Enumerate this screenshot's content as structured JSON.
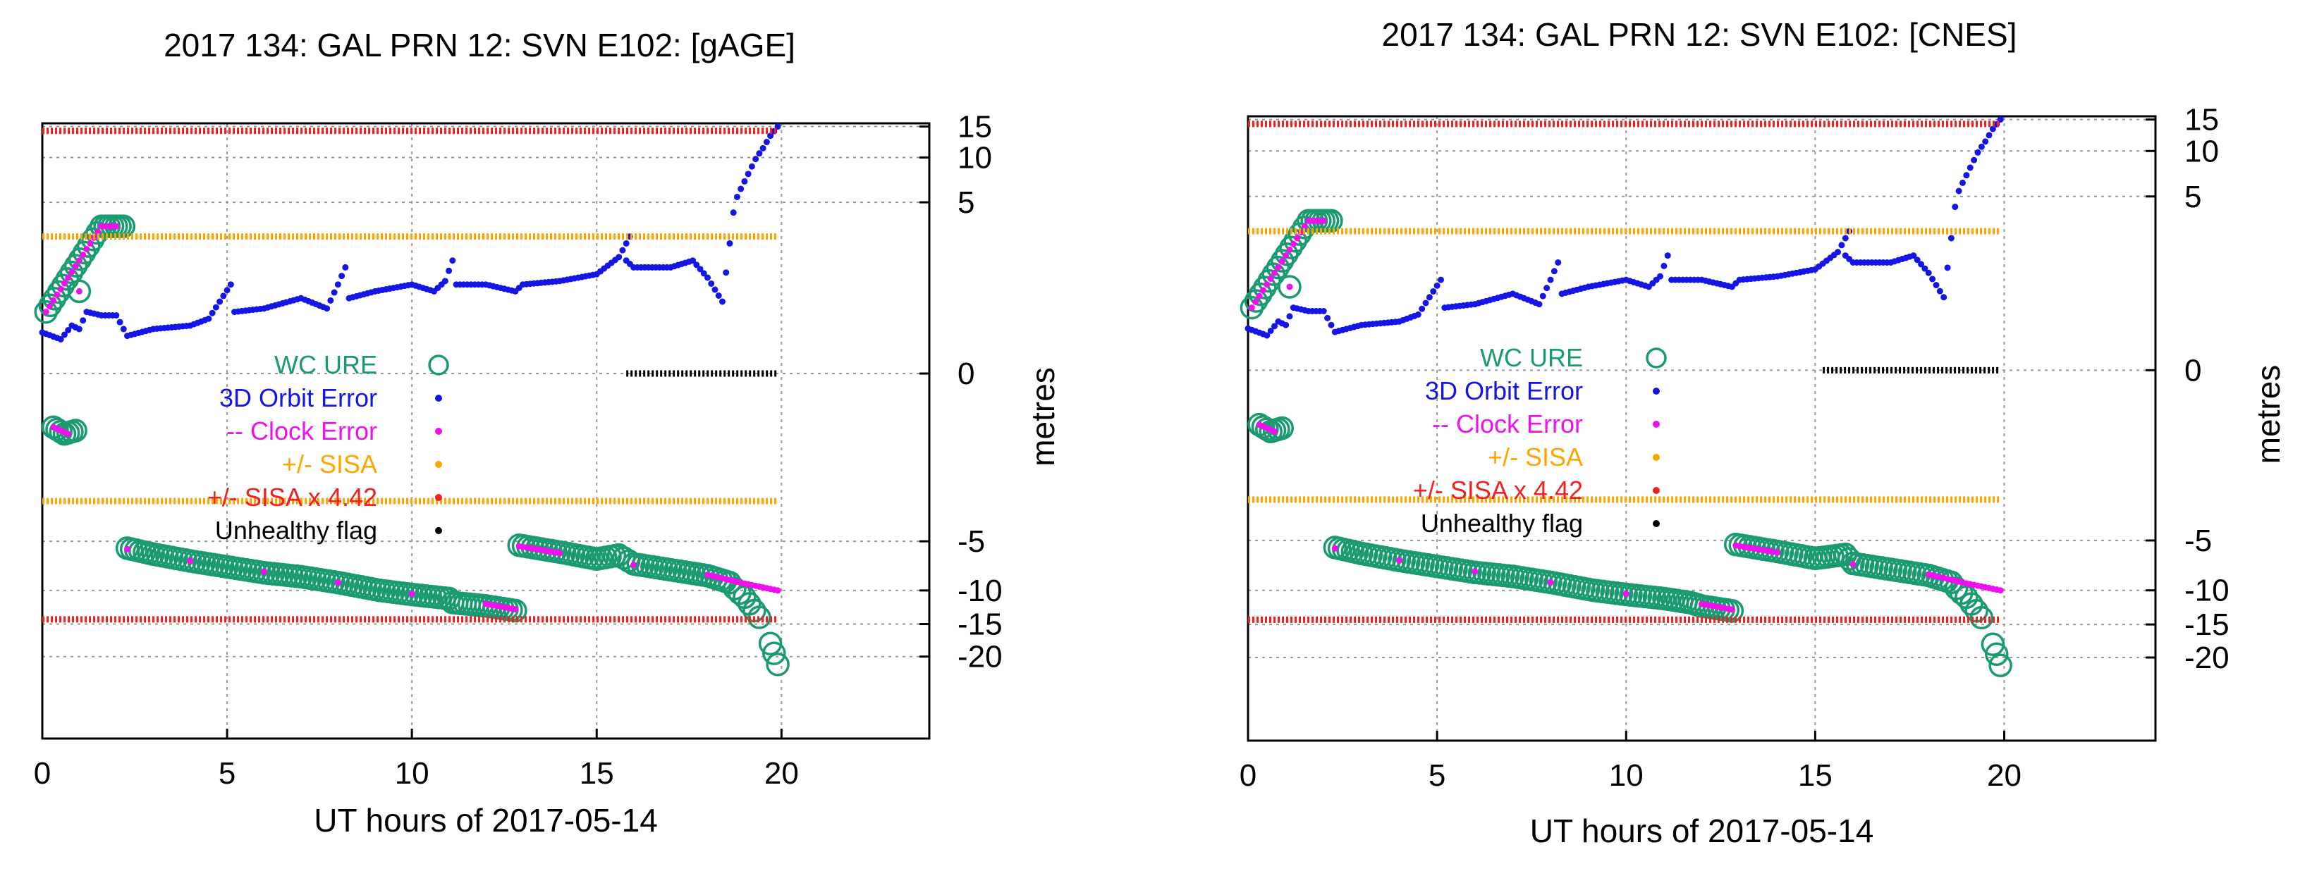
{
  "colors": {
    "wc_ure": "#1a9a70",
    "orbit": "#1515e6",
    "clock": "#ee11ee",
    "sisa": "#ffa500",
    "sisa442": "#ee2222",
    "unhealthy": "#000000"
  },
  "chart_data": [
    {
      "type": "scatter",
      "title": "2017 134: GAL PRN 12: SVN E102: [gAGE]",
      "xlabel": "UT hours of 2017-05-14",
      "ylabel": "metres",
      "xlim": [
        0,
        24
      ],
      "ylim": [
        -23,
        16
      ],
      "y_scale": "custom-compressed (linear ±5 m, compressed beyond)",
      "xticks": [
        "0",
        "5",
        "10",
        "15",
        "20"
      ],
      "yticks": [
        "15",
        "10",
        "5",
        "0",
        "-5",
        "-10",
        "-15",
        "-20"
      ],
      "grid": true,
      "legend_position": "middle-left",
      "series": [
        {
          "name": "WC URE",
          "marker": "open-circle",
          "points": [
            [
              0.1,
              1.8
            ],
            [
              1.6,
              4.3
            ],
            [
              1.8,
              4.3
            ],
            [
              2.0,
              4.3
            ],
            [
              2.2,
              4.3
            ],
            [
              1.0,
              2.4
            ],
            [
              0.3,
              -1.6
            ],
            [
              0.6,
              -1.8
            ],
            [
              0.9,
              -1.7
            ],
            [
              2.3,
              -5.7
            ],
            [
              3,
              -6.3
            ],
            [
              4,
              -7
            ],
            [
              5,
              -7.6
            ],
            [
              6,
              -8.2
            ],
            [
              7,
              -8.6
            ],
            [
              8,
              -9.2
            ],
            [
              9,
              -9.9
            ],
            [
              10,
              -10.6
            ],
            [
              11,
              -11.2
            ],
            [
              11.1,
              -11.8
            ],
            [
              12,
              -12.3
            ],
            [
              12.8,
              -13
            ],
            [
              12.9,
              -5.4
            ],
            [
              14,
              -6.1
            ],
            [
              15,
              -6.8
            ],
            [
              15.6,
              -6.4
            ],
            [
              16,
              -7.3
            ],
            [
              17,
              -7.9
            ],
            [
              18,
              -8.5
            ],
            [
              18.6,
              -9.2
            ],
            [
              19,
              -11
            ],
            [
              19.4,
              -14
            ],
            [
              19.7,
              -18
            ],
            [
              19.9,
              -21
            ]
          ]
        },
        {
          "name": "3D Orbit Error",
          "marker": "dot",
          "points": [
            [
              0,
              1.2
            ],
            [
              0.5,
              1.0
            ],
            [
              0.8,
              1.4
            ],
            [
              1,
              1.3
            ],
            [
              1.2,
              1.8
            ],
            [
              1.6,
              1.7
            ],
            [
              2,
              1.7
            ],
            [
              2.3,
              1.1
            ],
            [
              3,
              1.3
            ],
            [
              4,
              1.4
            ],
            [
              4.5,
              1.6
            ],
            [
              4.8,
              2.1
            ],
            [
              5.1,
              2.6
            ],
            [
              5.2,
              1.8
            ],
            [
              6,
              1.9
            ],
            [
              7,
              2.2
            ],
            [
              7.7,
              1.9
            ],
            [
              8,
              2.6
            ],
            [
              8.2,
              3.1
            ],
            [
              8.3,
              2.2
            ],
            [
              9,
              2.4
            ],
            [
              10,
              2.6
            ],
            [
              10.6,
              2.4
            ],
            [
              10.9,
              2.7
            ],
            [
              11.1,
              3.3
            ],
            [
              11.2,
              2.6
            ],
            [
              12,
              2.6
            ],
            [
              12.8,
              2.4
            ],
            [
              13,
              2.6
            ],
            [
              14,
              2.7
            ],
            [
              15,
              2.9
            ],
            [
              15.6,
              3.4
            ],
            [
              15.9,
              4.0
            ],
            [
              15.8,
              3.3
            ],
            [
              16,
              3.1
            ],
            [
              17,
              3.1
            ],
            [
              17.6,
              3.3
            ],
            [
              18,
              2.8
            ],
            [
              18.4,
              2.1
            ],
            [
              18.6,
              3.8
            ],
            [
              18.9,
              6.5
            ],
            [
              19.2,
              9
            ],
            [
              19.5,
              11.5
            ],
            [
              19.7,
              13.5
            ],
            [
              19.9,
              15
            ]
          ]
        },
        {
          "name": "-- Clock Error",
          "marker": "dot",
          "points": [
            [
              0.1,
              1.8
            ],
            [
              1.6,
              4.3
            ],
            [
              2,
              4.3
            ],
            [
              1,
              2.4
            ],
            [
              0.3,
              -1.6
            ],
            [
              0.7,
              -1.8
            ],
            [
              2.3,
              -5.8
            ],
            [
              4,
              -7
            ],
            [
              6,
              -8.1
            ],
            [
              8,
              -9.2
            ],
            [
              10,
              -10.5
            ],
            [
              12,
              -12
            ],
            [
              12.8,
              -12.8
            ],
            [
              12.9,
              -5.5
            ],
            [
              14,
              -6.2
            ],
            [
              16,
              -7.4
            ],
            [
              18,
              -8.4
            ],
            [
              19,
              -9.3
            ],
            [
              19.9,
              -10
            ]
          ]
        },
        {
          "name": "+/- SISA",
          "marker": "dot",
          "line_y": [
            4.0,
            -3.8
          ],
          "x_range": [
            0,
            19.9
          ]
        },
        {
          "name": "+/- SISA x 4.42",
          "marker": "dot",
          "line_y": [
            14.3,
            -14.3
          ],
          "x_range": [
            0,
            19.9
          ]
        },
        {
          "name": "Unhealthy flag",
          "marker": "dot",
          "line_y": [
            0.0
          ],
          "x_range": [
            15.8,
            19.9
          ]
        }
      ]
    },
    {
      "type": "scatter",
      "title": "2017 134: GAL PRN 12: SVN E102: [CNES]",
      "xlabel": "UT hours of 2017-05-14",
      "ylabel": "metres",
      "xlim": [
        0,
        24
      ],
      "ylim": [
        -23,
        16
      ],
      "y_scale": "custom-compressed (linear ±5 m, compressed beyond)",
      "xticks": [
        "0",
        "5",
        "10",
        "15",
        "20"
      ],
      "yticks": [
        "15",
        "10",
        "5",
        "0",
        "-5",
        "-10",
        "-15",
        "-20"
      ],
      "grid": true,
      "legend_position": "middle-left",
      "series": [
        {
          "name": "WC URE",
          "marker": "open-circle",
          "points": [
            [
              0.1,
              1.8
            ],
            [
              1.6,
              4.3
            ],
            [
              1.8,
              4.3
            ],
            [
              2.0,
              4.3
            ],
            [
              2.2,
              4.3
            ],
            [
              1.1,
              2.4
            ],
            [
              0.3,
              -1.6
            ],
            [
              0.6,
              -1.8
            ],
            [
              0.9,
              -1.7
            ],
            [
              2.3,
              -5.7
            ],
            [
              3,
              -6.3
            ],
            [
              4,
              -7
            ],
            [
              5,
              -7.6
            ],
            [
              6,
              -8.2
            ],
            [
              7,
              -8.6
            ],
            [
              8,
              -9.2
            ],
            [
              9,
              -9.9
            ],
            [
              10,
              -10.6
            ],
            [
              11,
              -11.2
            ],
            [
              11.7,
              -11.8
            ],
            [
              12,
              -12.3
            ],
            [
              12.8,
              -13
            ],
            [
              12.9,
              -5.4
            ],
            [
              14,
              -6.1
            ],
            [
              15,
              -6.8
            ],
            [
              15.8,
              -6.4
            ],
            [
              16,
              -7.3
            ],
            [
              17,
              -7.9
            ],
            [
              18,
              -8.5
            ],
            [
              18.6,
              -9.2
            ],
            [
              19,
              -11
            ],
            [
              19.4,
              -14
            ],
            [
              19.7,
              -18
            ],
            [
              19.9,
              -21
            ]
          ]
        },
        {
          "name": "3D Orbit Error",
          "marker": "dot",
          "points": [
            [
              0,
              1.2
            ],
            [
              0.5,
              1.0
            ],
            [
              0.8,
              1.4
            ],
            [
              1,
              1.3
            ],
            [
              1.2,
              1.8
            ],
            [
              1.6,
              1.7
            ],
            [
              2,
              1.7
            ],
            [
              2.3,
              1.1
            ],
            [
              3,
              1.3
            ],
            [
              4,
              1.4
            ],
            [
              4.5,
              1.6
            ],
            [
              4.8,
              2.1
            ],
            [
              5.1,
              2.6
            ],
            [
              5.2,
              1.8
            ],
            [
              6,
              1.9
            ],
            [
              7,
              2.2
            ],
            [
              7.7,
              1.9
            ],
            [
              8,
              2.6
            ],
            [
              8.2,
              3.1
            ],
            [
              8.3,
              2.2
            ],
            [
              9,
              2.4
            ],
            [
              10,
              2.6
            ],
            [
              10.6,
              2.4
            ],
            [
              10.9,
              2.7
            ],
            [
              11.1,
              3.3
            ],
            [
              11.2,
              2.6
            ],
            [
              12,
              2.6
            ],
            [
              12.8,
              2.4
            ],
            [
              13,
              2.6
            ],
            [
              14,
              2.7
            ],
            [
              15,
              2.9
            ],
            [
              15.6,
              3.4
            ],
            [
              15.9,
              4.0
            ],
            [
              15.8,
              3.3
            ],
            [
              16,
              3.1
            ],
            [
              17,
              3.1
            ],
            [
              17.6,
              3.3
            ],
            [
              18,
              2.8
            ],
            [
              18.4,
              2.1
            ],
            [
              18.6,
              3.8
            ],
            [
              18.9,
              6.5
            ],
            [
              19.2,
              9
            ],
            [
              19.5,
              11.5
            ],
            [
              19.7,
              13.5
            ],
            [
              19.9,
              15
            ]
          ]
        },
        {
          "name": "-- Clock Error",
          "marker": "dot",
          "points": [
            [
              0.1,
              1.8
            ],
            [
              1.6,
              4.3
            ],
            [
              2,
              4.3
            ],
            [
              1.1,
              2.4
            ],
            [
              0.3,
              -1.6
            ],
            [
              0.7,
              -1.8
            ],
            [
              2.3,
              -5.8
            ],
            [
              4,
              -7
            ],
            [
              6,
              -8.1
            ],
            [
              8,
              -9.2
            ],
            [
              10,
              -10.5
            ],
            [
              12,
              -12
            ],
            [
              12.8,
              -12.8
            ],
            [
              12.9,
              -5.5
            ],
            [
              14,
              -6.2
            ],
            [
              16,
              -7.4
            ],
            [
              18,
              -8.4
            ],
            [
              19,
              -9.3
            ],
            [
              19.9,
              -10
            ]
          ]
        },
        {
          "name": "+/- SISA",
          "marker": "dot",
          "line_y": [
            4.0,
            -3.8
          ],
          "x_range": [
            0,
            19.9
          ]
        },
        {
          "name": "+/- SISA x 4.42",
          "marker": "dot",
          "line_y": [
            14.3,
            -14.3
          ],
          "x_range": [
            0,
            19.9
          ]
        },
        {
          "name": "Unhealthy flag",
          "marker": "dot",
          "line_y": [
            0.0
          ],
          "x_range": [
            15.2,
            19.9
          ]
        }
      ]
    }
  ]
}
